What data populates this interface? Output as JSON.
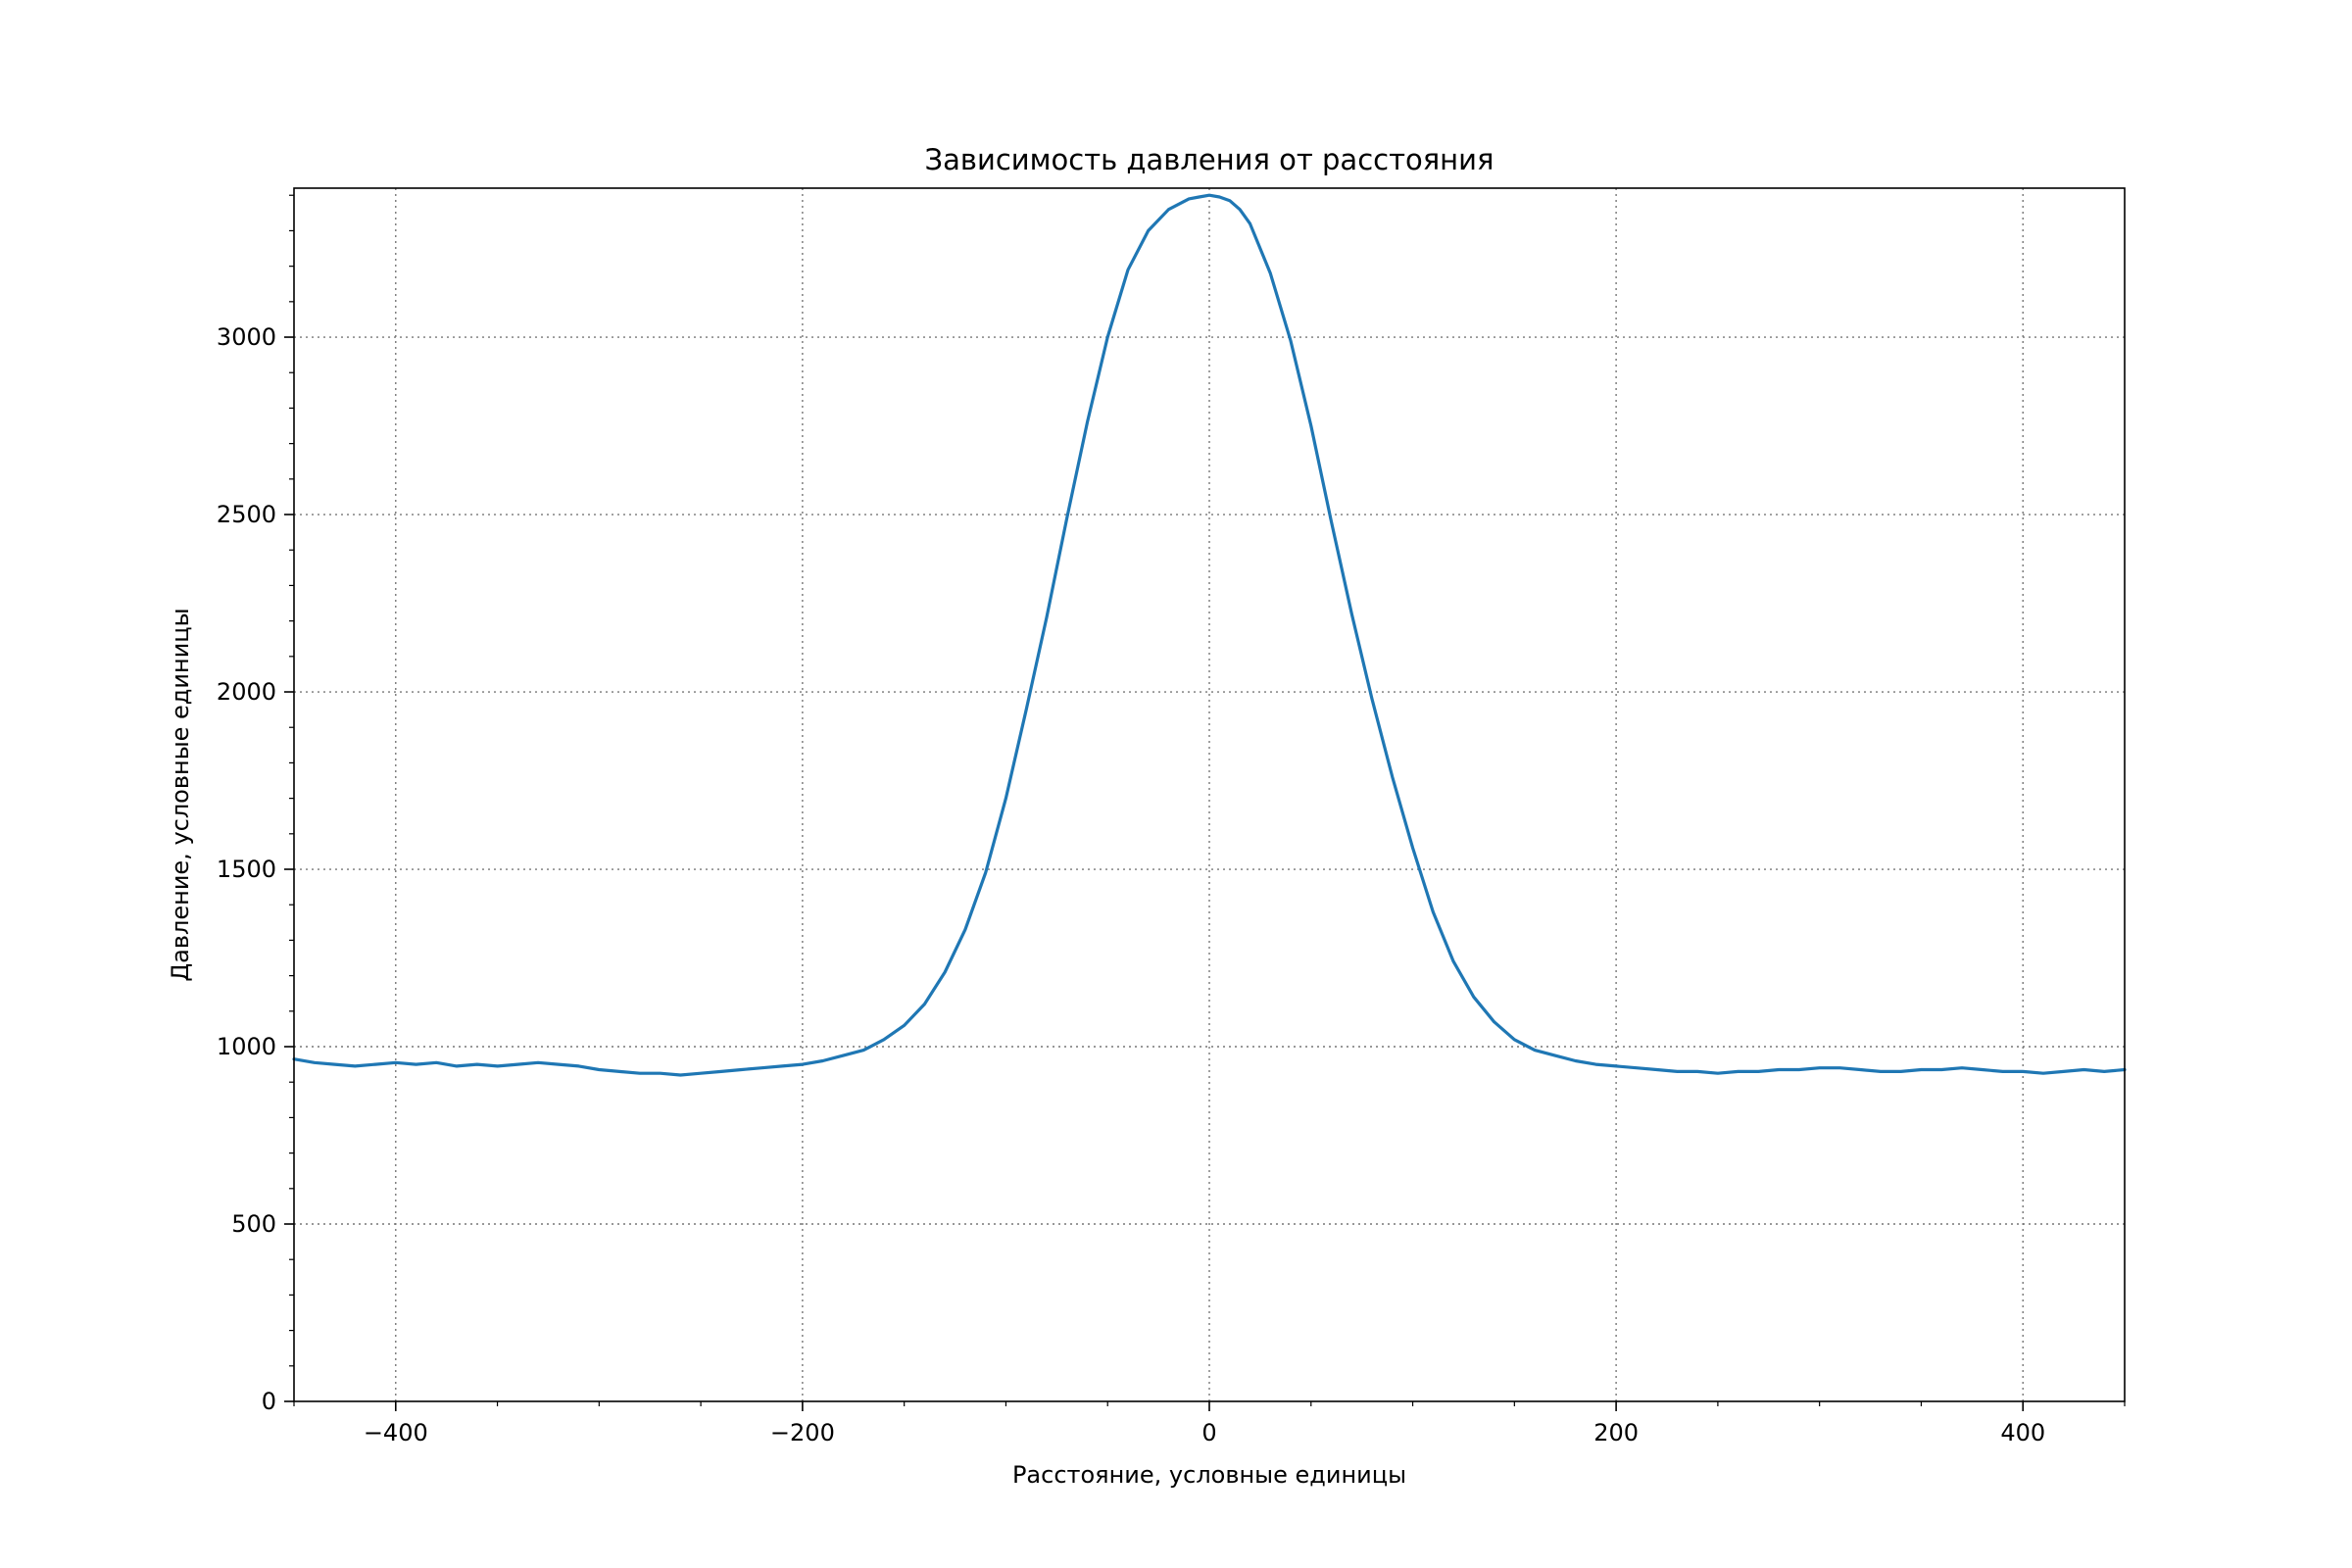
{
  "chart_data": {
    "type": "line",
    "title": "Зависимость давления от расстояния",
    "xlabel": "Расстояние, условные единицы",
    "ylabel": "Давление, условные единицы",
    "xlim": [
      -450,
      450
    ],
    "ylim": [
      0,
      3420
    ],
    "x_ticks": [
      -400,
      -200,
      0,
      200,
      400
    ],
    "x_tick_labels": [
      "−400",
      "−200",
      "0",
      "200",
      "400"
    ],
    "y_ticks": [
      0,
      500,
      1000,
      1500,
      2000,
      2500,
      3000
    ],
    "y_tick_labels": [
      "0",
      "500",
      "1000",
      "1500",
      "2000",
      "2500",
      "3000"
    ],
    "grid": true,
    "grid_style": "dotted",
    "legend": "none",
    "series": [
      {
        "color": "#1f77b4",
        "x": [
          -450,
          -440,
          -430,
          -420,
          -410,
          -400,
          -390,
          -380,
          -370,
          -360,
          -350,
          -340,
          -330,
          -320,
          -310,
          -300,
          -290,
          -280,
          -270,
          -260,
          -250,
          -240,
          -230,
          -220,
          -210,
          -200,
          -190,
          -180,
          -170,
          -160,
          -150,
          -140,
          -130,
          -120,
          -110,
          -100,
          -90,
          -80,
          -70,
          -60,
          -50,
          -40,
          -30,
          -20,
          -10,
          -5,
          0,
          5,
          10,
          15,
          20,
          30,
          40,
          50,
          60,
          70,
          80,
          90,
          100,
          110,
          120,
          130,
          140,
          150,
          160,
          170,
          180,
          190,
          200,
          210,
          220,
          230,
          240,
          250,
          260,
          270,
          280,
          290,
          300,
          310,
          320,
          330,
          340,
          350,
          360,
          370,
          380,
          390,
          400,
          410,
          420,
          430,
          440,
          450
        ],
        "y": [
          965,
          955,
          950,
          945,
          950,
          955,
          950,
          955,
          945,
          950,
          945,
          950,
          955,
          950,
          945,
          935,
          930,
          925,
          925,
          920,
          925,
          930,
          935,
          940,
          945,
          950,
          960,
          975,
          990,
          1020,
          1060,
          1120,
          1210,
          1330,
          1490,
          1700,
          1950,
          2210,
          2490,
          2760,
          3000,
          3190,
          3300,
          3360,
          3390,
          3395,
          3400,
          3395,
          3385,
          3360,
          3320,
          3180,
          2990,
          2750,
          2480,
          2220,
          1980,
          1760,
          1560,
          1380,
          1240,
          1140,
          1070,
          1020,
          990,
          975,
          960,
          950,
          945,
          940,
          935,
          930,
          930,
          925,
          930,
          930,
          935,
          935,
          940,
          940,
          935,
          930,
          930,
          935,
          935,
          940,
          935,
          930,
          930,
          925,
          930,
          935,
          930,
          935
        ]
      }
    ]
  }
}
